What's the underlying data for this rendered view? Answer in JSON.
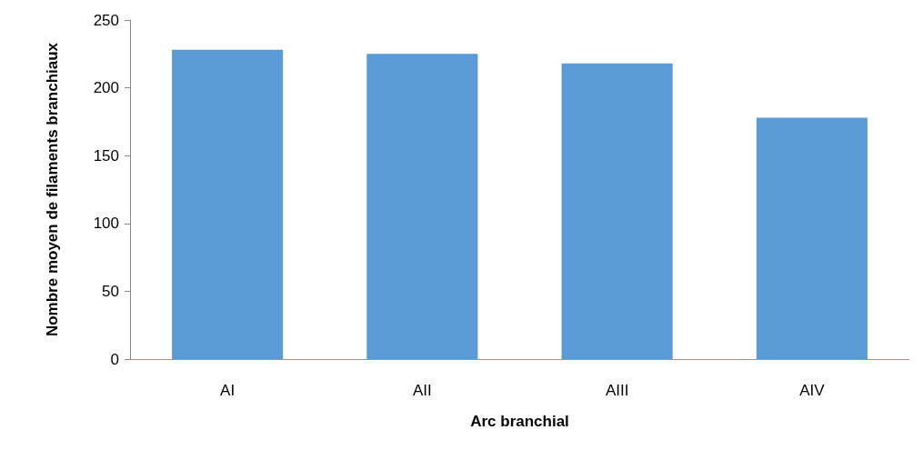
{
  "chart_data": {
    "type": "bar",
    "xlabel": "Arc branchial",
    "ylabel": "Nombre moyen de filaments branchiaux",
    "categories": [
      "AI",
      "AII",
      "AIII",
      "AIV"
    ],
    "values": [
      228,
      225,
      218,
      178
    ],
    "color": "#5b9bd5",
    "ylim": [
      0,
      250
    ],
    "yticks": [
      0,
      50,
      100,
      150,
      200,
      250
    ]
  }
}
